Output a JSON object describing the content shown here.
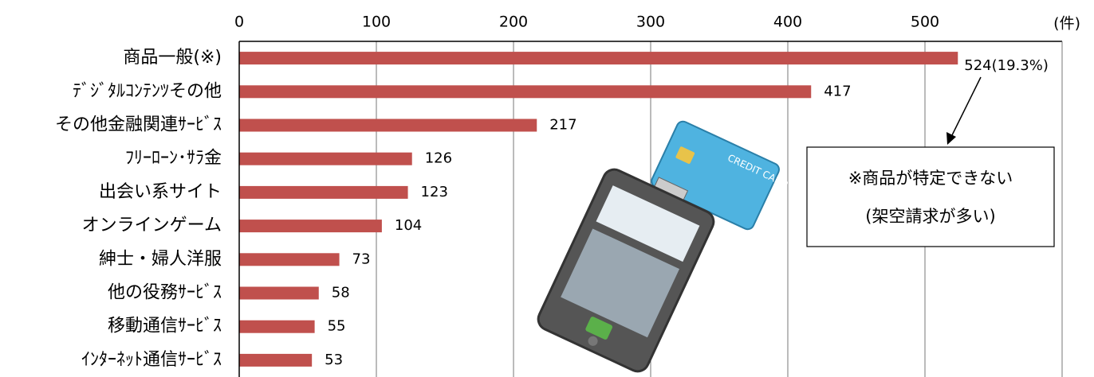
{
  "chart_data": {
    "type": "bar",
    "orientation": "horizontal",
    "unit_label": "(件)",
    "categories": [
      "商品一般(※)",
      "ﾃﾞｼﾞﾀﾙｺﾝﾃﾝﾂその他",
      "その他金融関連ｻｰﾋﾞｽ",
      "ﾌﾘｰﾛｰﾝ･ｻﾗ金",
      "出会い系サイト",
      "オンラインゲーム",
      "紳士・婦人洋服",
      "他の役務ｻｰﾋﾞｽ",
      "移動通信ｻｰﾋﾞｽ",
      "ｲﾝﾀｰﾈｯﾄ通信ｻｰﾋﾞｽ"
    ],
    "values": [
      524,
      417,
      217,
      126,
      123,
      104,
      73,
      58,
      55,
      53
    ],
    "value_labels": [
      "524(19.3%)",
      "417",
      "217",
      "126",
      "123",
      "104",
      "73",
      "58",
      "55",
      "53"
    ],
    "color": "#c0504d",
    "xlim": [
      0,
      600
    ],
    "xticks": [
      0,
      100,
      200,
      300,
      400,
      500
    ],
    "grid": true,
    "annotation": [
      "※商品が特定できない",
      "(架空請求が多い)"
    ]
  }
}
